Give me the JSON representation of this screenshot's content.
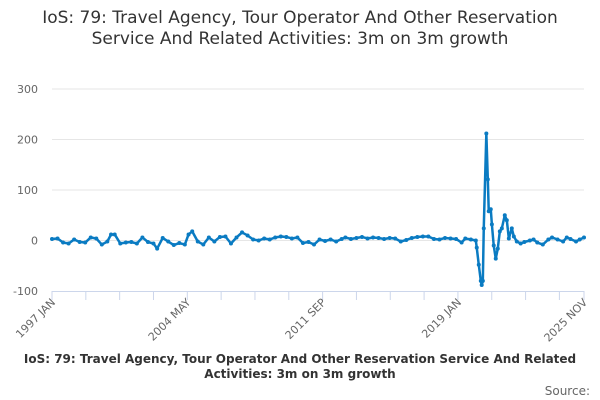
{
  "chart_data": {
    "type": "line",
    "title": "IoS: 79: Travel Agency, Tour Operator And Other Reservation Service And Related Activities: 3m on 3m growth",
    "xlabel": "",
    "ylabel": "",
    "ylim": [
      -100,
      300
    ],
    "yticks": [
      -100,
      0,
      100,
      200,
      300
    ],
    "xlim": [
      1997.0,
      2025.833
    ],
    "xtick_labels": [
      {
        "label": "1997 JAN",
        "x": 1997.0
      },
      {
        "label": "2004 MAY",
        "x": 2004.333
      },
      {
        "label": "2011 SEP",
        "x": 2011.667
      },
      {
        "label": "2019 JAN",
        "x": 2019.0
      },
      {
        "label": "2025 NOV",
        "x": 2025.833
      }
    ],
    "grid": true,
    "color": "#0a7bc2",
    "series": [
      {
        "name": "3m on 3m growth",
        "points": [
          [
            1997.0,
            3
          ],
          [
            1997.3,
            4
          ],
          [
            1997.6,
            -4
          ],
          [
            1997.9,
            -6
          ],
          [
            1998.2,
            2
          ],
          [
            1998.5,
            -3
          ],
          [
            1998.8,
            -4
          ],
          [
            1999.1,
            6
          ],
          [
            1999.4,
            4
          ],
          [
            1999.7,
            -8
          ],
          [
            2000.0,
            -2
          ],
          [
            2000.2,
            12
          ],
          [
            2000.4,
            12
          ],
          [
            2000.7,
            -6
          ],
          [
            2001.0,
            -4
          ],
          [
            2001.3,
            -3
          ],
          [
            2001.6,
            -6
          ],
          [
            2001.9,
            6
          ],
          [
            2002.2,
            -3
          ],
          [
            2002.5,
            -6
          ],
          [
            2002.7,
            -16
          ],
          [
            2003.0,
            5
          ],
          [
            2003.3,
            -2
          ],
          [
            2003.6,
            -9
          ],
          [
            2003.9,
            -5
          ],
          [
            2004.2,
            -8
          ],
          [
            2004.4,
            12
          ],
          [
            2004.6,
            18
          ],
          [
            2004.9,
            -2
          ],
          [
            2005.2,
            -8
          ],
          [
            2005.5,
            6
          ],
          [
            2005.8,
            -2
          ],
          [
            2006.1,
            7
          ],
          [
            2006.4,
            8
          ],
          [
            2006.7,
            -6
          ],
          [
            2007.0,
            6
          ],
          [
            2007.3,
            16
          ],
          [
            2007.6,
            10
          ],
          [
            2007.9,
            2
          ],
          [
            2008.2,
            0
          ],
          [
            2008.5,
            4
          ],
          [
            2008.8,
            2
          ],
          [
            2009.1,
            6
          ],
          [
            2009.4,
            8
          ],
          [
            2009.7,
            7
          ],
          [
            2010.0,
            4
          ],
          [
            2010.3,
            6
          ],
          [
            2010.6,
            -5
          ],
          [
            2010.9,
            -3
          ],
          [
            2011.2,
            -8
          ],
          [
            2011.5,
            2
          ],
          [
            2011.8,
            -1
          ],
          [
            2012.1,
            2
          ],
          [
            2012.4,
            -2
          ],
          [
            2012.7,
            3
          ],
          [
            2012.9,
            6
          ],
          [
            2013.2,
            3
          ],
          [
            2013.5,
            5
          ],
          [
            2013.8,
            7
          ],
          [
            2014.1,
            4
          ],
          [
            2014.4,
            6
          ],
          [
            2014.7,
            5
          ],
          [
            2015.0,
            3
          ],
          [
            2015.3,
            5
          ],
          [
            2015.6,
            4
          ],
          [
            2015.9,
            -2
          ],
          [
            2016.2,
            1
          ],
          [
            2016.5,
            5
          ],
          [
            2016.8,
            7
          ],
          [
            2017.1,
            8
          ],
          [
            2017.4,
            8
          ],
          [
            2017.7,
            3
          ],
          [
            2018.0,
            2
          ],
          [
            2018.3,
            5
          ],
          [
            2018.6,
            4
          ],
          [
            2018.9,
            3
          ],
          [
            2019.2,
            -4
          ],
          [
            2019.4,
            4
          ],
          [
            2019.7,
            2
          ],
          [
            2019.97,
            0
          ],
          [
            2020.02,
            -14
          ],
          [
            2020.13,
            -48
          ],
          [
            2020.24,
            -80
          ],
          [
            2020.29,
            -88
          ],
          [
            2020.35,
            -80
          ],
          [
            2020.4,
            24
          ],
          [
            2020.54,
            212
          ],
          [
            2020.62,
            121
          ],
          [
            2020.67,
            58
          ],
          [
            2020.78,
            62
          ],
          [
            2020.84,
            32
          ],
          [
            2020.94,
            -10
          ],
          [
            2021.05,
            -36
          ],
          [
            2021.16,
            -16
          ],
          [
            2021.27,
            18
          ],
          [
            2021.38,
            24
          ],
          [
            2021.54,
            50
          ],
          [
            2021.65,
            40
          ],
          [
            2021.76,
            4
          ],
          [
            2021.92,
            24
          ],
          [
            2022.03,
            8
          ],
          [
            2022.19,
            -2
          ],
          [
            2022.4,
            -6
          ],
          [
            2022.6,
            -3
          ],
          [
            2022.9,
            0
          ],
          [
            2023.1,
            2
          ],
          [
            2023.3,
            -4
          ],
          [
            2023.6,
            -8
          ],
          [
            2023.9,
            2
          ],
          [
            2024.1,
            6
          ],
          [
            2024.4,
            2
          ],
          [
            2024.7,
            -2
          ],
          [
            2024.9,
            6
          ],
          [
            2025.1,
            3
          ],
          [
            2025.4,
            -2
          ],
          [
            2025.6,
            2
          ],
          [
            2025.833,
            6
          ]
        ]
      }
    ]
  },
  "caption": "IoS: 79: Travel Agency, Tour Operator And Other Reservation Service And Related Activities: 3m on 3m growth",
  "source": "Source:"
}
